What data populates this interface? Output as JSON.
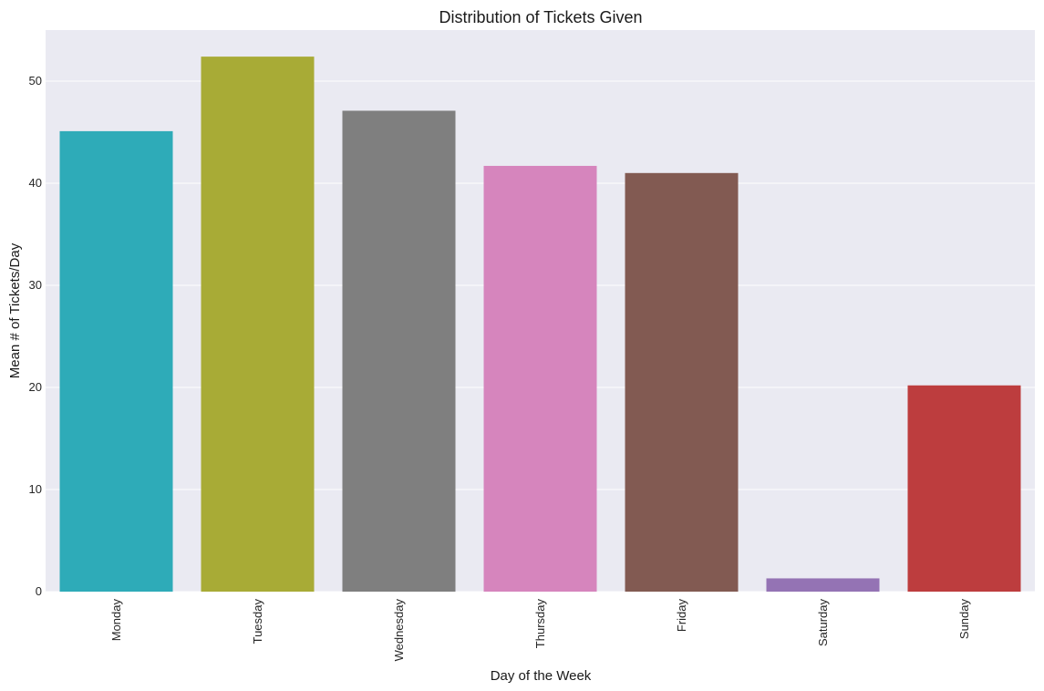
{
  "chart_data": {
    "type": "bar",
    "title": "Distribution of Tickets Given",
    "xlabel": "Day of the Week",
    "ylabel": "Mean # of Tickets/Day",
    "categories": [
      "Monday",
      "Tuesday",
      "Wednesday",
      "Thursday",
      "Friday",
      "Saturday",
      "Sunday"
    ],
    "values": [
      45.1,
      52.4,
      47.1,
      41.7,
      41.0,
      1.3,
      20.2
    ],
    "colors": [
      "#2eabb8",
      "#a8ab36",
      "#7f7f7f",
      "#d685bd",
      "#825a52",
      "#9473b4",
      "#bd3d3e"
    ],
    "ylim": [
      0,
      55
    ],
    "yticks": [
      0,
      10,
      20,
      30,
      40,
      50
    ],
    "grid": true,
    "plot_background": "#eaeaf2",
    "gridline_color": "#ffffff"
  }
}
